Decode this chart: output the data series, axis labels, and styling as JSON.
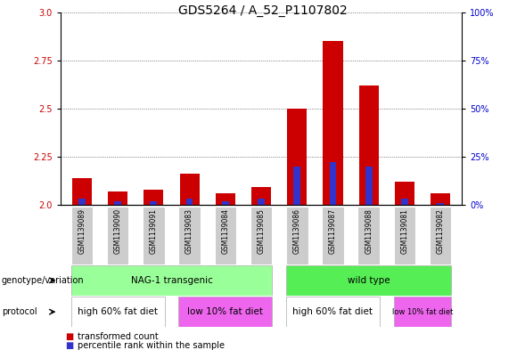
{
  "title": "GDS5264 / A_52_P1107802",
  "samples": [
    "GSM1139089",
    "GSM1139090",
    "GSM1139091",
    "GSM1139083",
    "GSM1139084",
    "GSM1139085",
    "GSM1139086",
    "GSM1139087",
    "GSM1139088",
    "GSM1139081",
    "GSM1139082"
  ],
  "transformed_count": [
    2.14,
    2.07,
    2.08,
    2.16,
    2.06,
    2.09,
    2.5,
    2.85,
    2.62,
    2.12,
    2.06
  ],
  "percentile_rank": [
    3,
    2,
    2,
    3,
    2,
    3,
    20,
    22,
    20,
    3,
    1
  ],
  "ylim_left": [
    2.0,
    3.0
  ],
  "ylim_right": [
    0,
    100
  ],
  "yticks_left": [
    2.0,
    2.25,
    2.5,
    2.75,
    3.0
  ],
  "yticks_right": [
    0,
    25,
    50,
    75,
    100
  ],
  "bar_color_red": "#cc0000",
  "bar_color_blue": "#3333cc",
  "background_color": "#ffffff",
  "grid_color": "#000000",
  "sample_bg_color": "#cccccc",
  "genotype_nag_color": "#99ff99",
  "genotype_wt_color": "#55ee55",
  "protocol_high_color": "#ffffff",
  "protocol_low_color": "#ee66ee",
  "left_label_color": "#cc0000",
  "right_label_color": "#0000cc",
  "title_fontsize": 10,
  "tick_fontsize": 7,
  "bar_width": 0.55,
  "genotype_groups": [
    {
      "label": "NAG-1 transgenic",
      "start": 0,
      "end": 5
    },
    {
      "label": "wild type",
      "start": 6,
      "end": 10
    }
  ],
  "protocol_groups": [
    {
      "label": "high 60% fat diet",
      "start": 0,
      "end": 2,
      "color": "#ffffff"
    },
    {
      "label": "low 10% fat diet",
      "start": 3,
      "end": 5,
      "color": "#ee66ee"
    },
    {
      "label": "high 60% fat diet",
      "start": 6,
      "end": 8,
      "color": "#ffffff"
    },
    {
      "label": "low 10% fat diet",
      "start": 9,
      "end": 10,
      "color": "#ee66ee"
    }
  ]
}
